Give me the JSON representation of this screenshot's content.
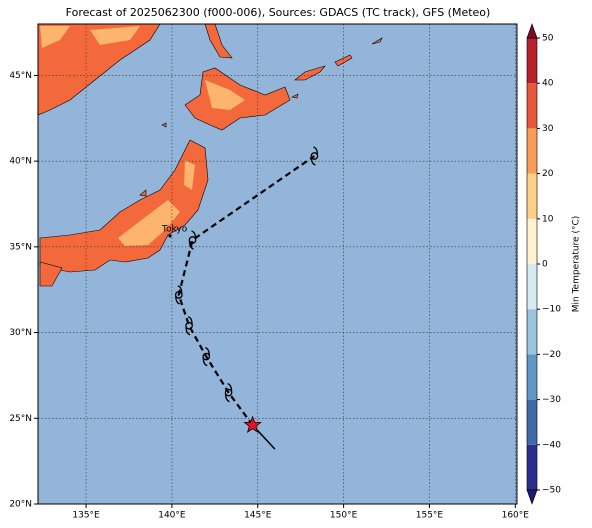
{
  "title": "Forecast of 2025062300 (f000-006), Sources: GDACS (TC track), GFS (Meteo)",
  "map": {
    "xlim": [
      132.2,
      160.1
    ],
    "ylim": [
      20,
      48
    ],
    "xticks": [
      {
        "value": 135,
        "label": "135°E"
      },
      {
        "value": 140,
        "label": "140°E"
      },
      {
        "value": 145,
        "label": "145°E"
      },
      {
        "value": 150,
        "label": "150°E"
      },
      {
        "value": 155,
        "label": "155°E"
      },
      {
        "value": 160,
        "label": "160°E"
      }
    ],
    "yticks": [
      {
        "value": 20,
        "label": "20°N"
      },
      {
        "value": 25,
        "label": "25°N"
      },
      {
        "value": 30,
        "label": "30°N"
      },
      {
        "value": 35,
        "label": "35°N"
      },
      {
        "value": 40,
        "label": "40°N"
      },
      {
        "value": 45,
        "label": "45°N"
      }
    ]
  },
  "city": "Tokyo",
  "track": {
    "past": {
      "lon": [
        146.0,
        144.7
      ],
      "lat": [
        23.2,
        24.6
      ]
    },
    "forecast": {
      "lon": [
        144.7,
        143.3,
        142.0,
        141.0,
        140.4,
        141.2,
        148.3
      ],
      "lat": [
        24.6,
        26.5,
        28.6,
        30.4,
        32.2,
        35.4,
        40.3
      ]
    }
  },
  "colorbar": {
    "label": "Min Temperature (°C)",
    "lim": [
      -50,
      50
    ],
    "ticks": [
      {
        "value": -50,
        "label": "−50"
      },
      {
        "value": -40,
        "label": "−40"
      },
      {
        "value": -30,
        "label": "−30"
      },
      {
        "value": -20,
        "label": "−20"
      },
      {
        "value": -10,
        "label": "−10"
      },
      0,
      10,
      20,
      30,
      40,
      50
    ],
    "colors": [
      "#2b2d8f",
      "#3f69ab",
      "#5f97c6",
      "#99c4de",
      "#d6eaf2",
      "#fff4cf",
      "#fdcf87",
      "#f99c55",
      "#e8573a",
      "#b8212b"
    ],
    "extend_colors": [
      "#1c1c6e",
      "#7d0b26"
    ]
  }
}
